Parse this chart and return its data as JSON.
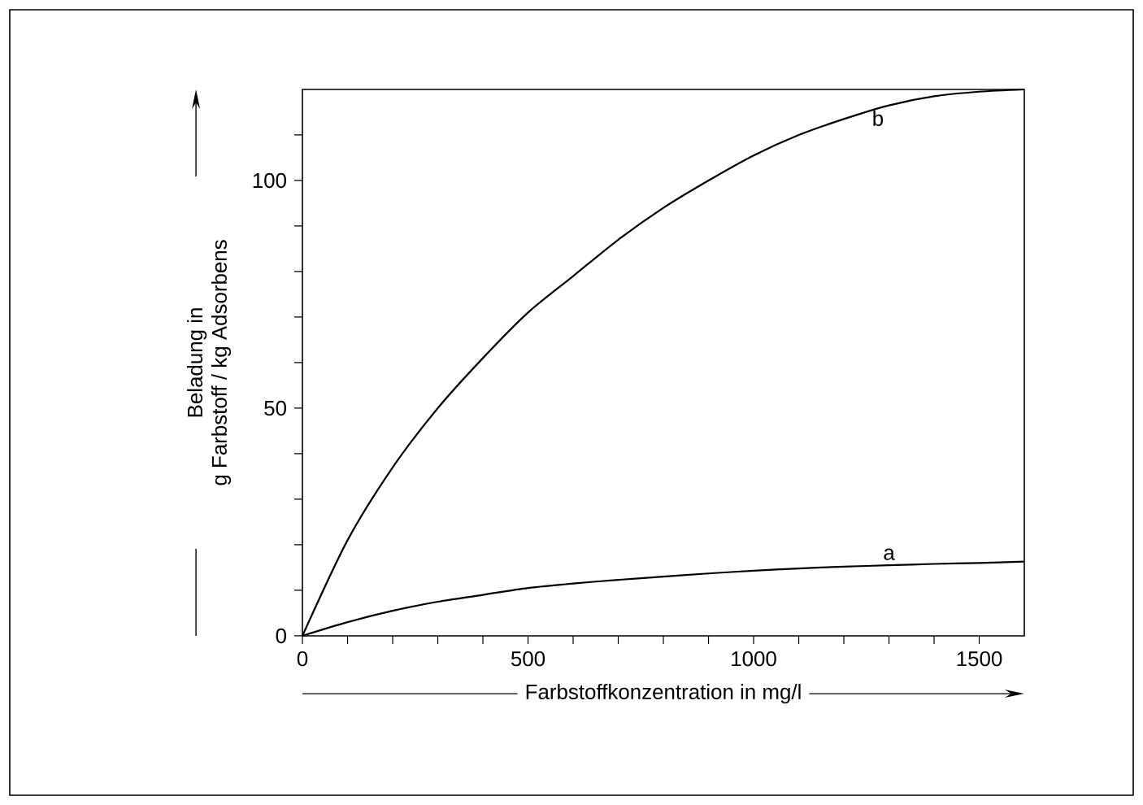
{
  "chart_data": {
    "type": "line",
    "xlabel": "Farbstoffkonzentration in mg/l",
    "ylabel": "Beladung in g Farbstoff / kg Adsorbens",
    "x": [
      0,
      100,
      200,
      300,
      400,
      500,
      600,
      700,
      800,
      900,
      1000,
      1100,
      1200,
      1300,
      1400,
      1500,
      1600
    ],
    "series": [
      {
        "name": "a",
        "color": "#000000",
        "values": [
          0,
          3,
          5.5,
          7.5,
          9,
          10.5,
          11.5,
          12.3,
          13,
          13.7,
          14.3,
          14.8,
          15.2,
          15.5,
          15.8,
          16,
          16.3
        ]
      },
      {
        "name": "b",
        "color": "#000000",
        "values": [
          0,
          21,
          37,
          50,
          61,
          71,
          79,
          87,
          94,
          100,
          105.5,
          110,
          113.5,
          116.5,
          118.5,
          119.5,
          120
        ]
      }
    ],
    "xlim": [
      0,
      1600
    ],
    "ylim": [
      0,
      120
    ],
    "xticks": [
      0,
      {
        "value": 100,
        "label": null
      },
      {
        "value": 200,
        "label": null
      },
      {
        "value": 300,
        "label": null
      },
      {
        "value": 400,
        "label": null
      },
      500,
      {
        "value": 600,
        "label": null
      },
      {
        "value": 700,
        "label": null
      },
      {
        "value": 800,
        "label": null
      },
      {
        "value": 900,
        "label": null
      },
      1000,
      {
        "value": 1100,
        "label": null
      },
      {
        "value": 1200,
        "label": null
      },
      {
        "value": 1300,
        "label": null
      },
      {
        "value": 1400,
        "label": null
      },
      1500
    ],
    "yticks": [
      0,
      {
        "value": 10,
        "label": null
      },
      {
        "value": 20,
        "label": null
      },
      {
        "value": 30,
        "label": null
      },
      {
        "value": 40,
        "label": null
      },
      50,
      {
        "value": 60,
        "label": null
      },
      {
        "value": 70,
        "label": null
      },
      {
        "value": 80,
        "label": null
      },
      {
        "value": 90,
        "label": null
      },
      100,
      {
        "value": 110,
        "label": null
      }
    ],
    "grid": false,
    "legend": false,
    "marker": "none",
    "line_style": "solid"
  }
}
